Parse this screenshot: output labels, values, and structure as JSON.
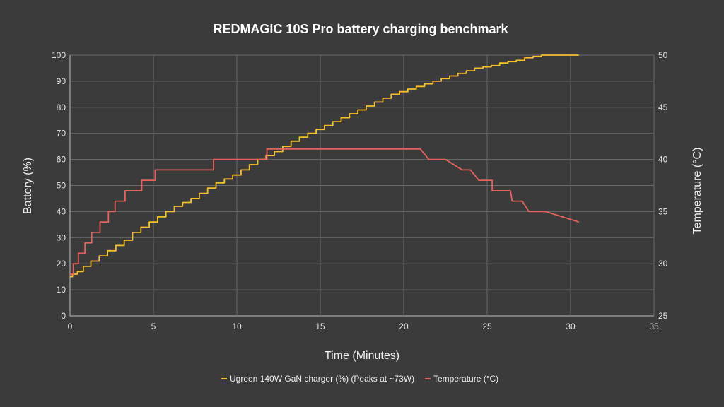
{
  "chart_data": {
    "type": "line",
    "title": "REDMAGIC 10S Pro battery charging benchmark",
    "xlabel": "Time (Minutes)",
    "ylabel": "Battery (%)",
    "y2label": "Temperature (°C)",
    "xlim": [
      0,
      35
    ],
    "ylim": [
      0,
      100
    ],
    "y2lim": [
      25,
      50
    ],
    "x_ticks": [
      0,
      5,
      10,
      15,
      20,
      25,
      30,
      35
    ],
    "y_ticks": [
      0,
      10,
      20,
      30,
      40,
      50,
      60,
      70,
      80,
      90,
      100
    ],
    "y2_ticks": [
      25,
      30,
      35,
      40,
      45,
      50
    ],
    "grid": true,
    "legend_position": "bottom",
    "series": [
      {
        "name": "Ugreen 140W GaN charger (%) (Peaks at ~73W)",
        "axis": "left",
        "color": "#f5c02a",
        "x": [
          0,
          0.3,
          0.6,
          1,
          1.5,
          2,
          2.5,
          3,
          3.5,
          4,
          4.5,
          5,
          5.5,
          6,
          6.5,
          7,
          7.5,
          8,
          8.5,
          9,
          9.5,
          10,
          10.5,
          11,
          11.5,
          12,
          12.5,
          13,
          13.5,
          14,
          14.5,
          15,
          15.5,
          16,
          16.5,
          17,
          17.5,
          18,
          18.5,
          19,
          19.5,
          20,
          20.5,
          21,
          21.5,
          22,
          22.5,
          23,
          23.5,
          24,
          24.5,
          25,
          25.5,
          26,
          26.5,
          27,
          27.5,
          28,
          28.5,
          29,
          29.5,
          30,
          30.5
        ],
        "y": [
          15,
          16,
          17,
          19,
          21,
          23,
          25,
          27,
          29,
          32,
          34,
          36,
          38,
          40,
          42,
          43.5,
          45,
          47,
          49,
          51,
          52.5,
          54,
          56,
          58,
          60,
          61.5,
          63,
          65,
          67,
          68.5,
          70,
          71.5,
          73,
          74.5,
          76,
          77.5,
          79,
          80.5,
          82,
          83.5,
          85,
          86,
          87,
          88,
          89,
          90,
          91,
          92,
          93,
          94,
          95,
          95.5,
          96,
          97,
          97.5,
          98,
          99,
          99.5,
          100,
          100,
          100,
          100,
          100
        ]
      },
      {
        "name": "Temperature (°C)",
        "axis": "right",
        "color": "#e8625c",
        "x": [
          0,
          0.2,
          0.2,
          0.5,
          0.5,
          0.9,
          0.9,
          1.3,
          1.3,
          1.8,
          1.8,
          2.3,
          2.3,
          2.7,
          2.7,
          3.3,
          3.3,
          4.3,
          4.3,
          5.1,
          5.1,
          5.9,
          5.9,
          8.6,
          8.6,
          11.8,
          11.8,
          21,
          21.5,
          22.5,
          23.5,
          24,
          24.5,
          25.3,
          25.3,
          26.4,
          26.5,
          27.1,
          27.5,
          28.5,
          30.5
        ],
        "y": [
          29,
          29,
          30,
          30,
          31,
          31,
          32,
          32,
          33,
          33,
          34,
          34,
          35,
          35,
          36,
          36,
          37,
          37,
          38,
          38,
          39,
          39,
          39,
          39,
          40,
          40,
          41,
          41,
          40,
          40,
          39,
          39,
          38,
          38,
          37,
          37,
          36,
          36,
          35,
          35,
          34
        ]
      }
    ]
  }
}
